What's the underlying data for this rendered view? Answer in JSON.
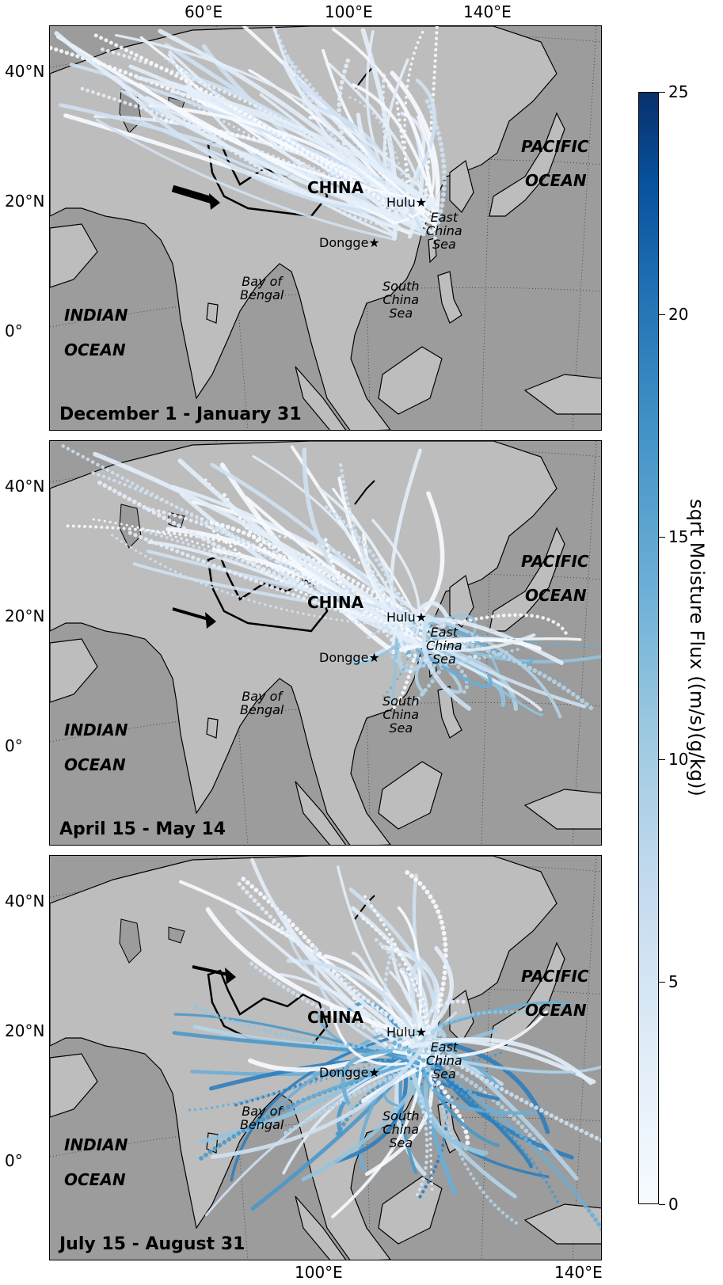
{
  "top_lon_ticks": [
    "60°E",
    "100°E",
    "140°E"
  ],
  "bottom_lon_ticks": [
    "100°E",
    "140°E"
  ],
  "lat_ticks": [
    "40°N",
    "20°N",
    "0°"
  ],
  "labels": {
    "pacific": "PACIFIC",
    "pacific_ocean": "OCEAN",
    "indian": "INDIAN",
    "indian_ocean": "OCEAN",
    "china": "CHINA",
    "hulu": "Hulu",
    "dongge": "Dongge",
    "east_china_sea": [
      "East",
      "China",
      "Sea"
    ],
    "south_china_sea": [
      "South",
      "China",
      "Sea"
    ],
    "bay_of_bengal": [
      "Bay of",
      "Bengal"
    ]
  },
  "panels": [
    {
      "period": "December 1 - January 31"
    },
    {
      "period": "April 15 - May 14"
    },
    {
      "period": "July 15 - August 31"
    }
  ],
  "colorbar": {
    "title": "sqrt Moisture Flux ((m/s)(g/kg))",
    "ticks": [
      "0",
      "5",
      "10",
      "15",
      "20",
      "25"
    ],
    "range": [
      0,
      25
    ],
    "colors": [
      "#f7fbff",
      "#c6dbef",
      "#6baed6",
      "#2171b5",
      "#08306b"
    ]
  },
  "colors": {
    "land": "#bdbdbd",
    "ocean": "#9c9c9c"
  }
}
